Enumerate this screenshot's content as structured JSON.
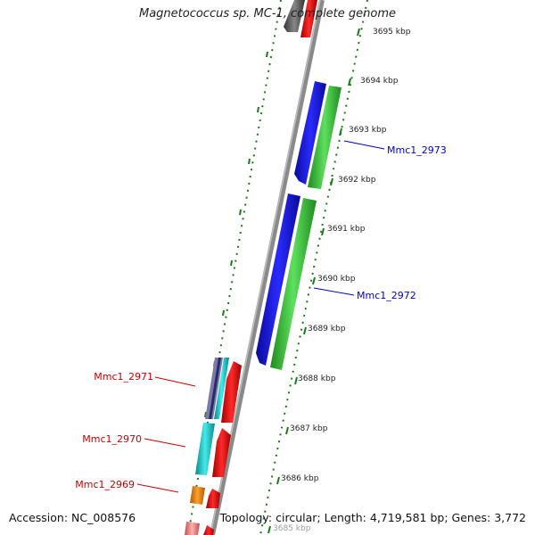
{
  "title": "Magnetococcus sp. MC-1, complete genome",
  "accession": "Accession: NC_008576",
  "topology": "Topology: circular; Length: 4,719,581 bp; Genes: 3,772",
  "colors": {
    "plus_strand_label": "#cc0000",
    "minus_strand_label": "#0000cc",
    "backbone": "#888888",
    "ruler": "#1a7a1a",
    "blue_gene": "#1a1aee",
    "green_gene": "#3ccc3c",
    "red_gene": "#ee1111",
    "cyan_gene": "#22cccc",
    "orange_gene": "#f08a00",
    "pink_gene": "#f28a8a",
    "grey_gene": "#666666"
  },
  "ruler_ticks": [
    {
      "label": "3685 kbp"
    },
    {
      "label": "3686 kbp"
    },
    {
      "label": "3687 kbp"
    },
    {
      "label": "3688 kbp"
    },
    {
      "label": "3689 kbp"
    },
    {
      "label": "3690 kbp"
    },
    {
      "label": "3691 kbp"
    },
    {
      "label": "3692 kbp"
    },
    {
      "label": "3693 kbp"
    },
    {
      "label": "3694 kbp"
    },
    {
      "label": "3695 kbp"
    }
  ],
  "gene_labels": [
    {
      "name": "Mmc1_2973",
      "strand": "minus"
    },
    {
      "name": "Mmc1_2972",
      "strand": "minus"
    },
    {
      "name": "Mmc1_2971",
      "strand": "plus"
    },
    {
      "name": "Mmc1_2970",
      "strand": "plus"
    },
    {
      "name": "Mmc1_2969",
      "strand": "plus"
    }
  ]
}
